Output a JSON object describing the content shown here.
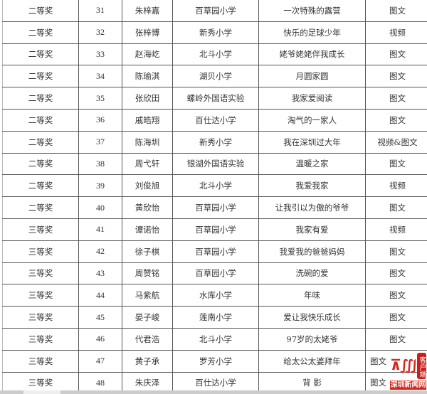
{
  "rows": [
    [
      "二等奖",
      "31",
      "朱梓嘉",
      "百草园小学",
      "一次特殊的露营",
      "图文"
    ],
    [
      "二等奖",
      "32",
      "张梓博",
      "新秀小学",
      "快乐的足球少年",
      "视频"
    ],
    [
      "二等奖",
      "33",
      "赵海屹",
      "北斗小学",
      "姥爷姥姥伴我成长",
      "图文"
    ],
    [
      "二等奖",
      "34",
      "陈瑜淇",
      "湖贝小学",
      "月圆家圆",
      "图文"
    ],
    [
      "二等奖",
      "35",
      "张欣田",
      "螺岭外国语实验",
      "我家爱阅读",
      "图文"
    ],
    [
      "二等奖",
      "36",
      "戚皓翔",
      "百仕达小学",
      "淘气的一家人",
      "图文"
    ],
    [
      "二等奖",
      "37",
      "陈海圳",
      "新秀小学",
      "我在深圳过大年",
      "视频&图文"
    ],
    [
      "二等奖",
      "38",
      "周弋轩",
      "银湖外国语实验",
      "温暖之家",
      "图文"
    ],
    [
      "二等奖",
      "39",
      "刘俊旭",
      "北斗小学",
      "我爱我家",
      "视频"
    ],
    [
      "二等奖",
      "40",
      "黄欣怡",
      "百草园小学",
      "让我引以为傲的爷爷",
      "图文"
    ],
    [
      "三等奖",
      "41",
      "谭诺怡",
      "百草园小学",
      "我家有爱",
      "视频"
    ],
    [
      "三等奖",
      "42",
      "徐子棋",
      "百草园小学",
      "我爱我的爸爸妈妈",
      "图文"
    ],
    [
      "三等奖",
      "43",
      "周赞铭",
      "百草园小学",
      "洗碗的爱",
      "图文"
    ],
    [
      "三等奖",
      "44",
      "马紫航",
      "水库小学",
      "年味",
      "图文"
    ],
    [
      "三等奖",
      "45",
      "晏子峻",
      "莲南小学",
      "爱让我快乐成长",
      "图文"
    ],
    [
      "三等奖",
      "46",
      "代君浩",
      "北斗小学",
      "97岁的太姥爷",
      "图文"
    ],
    [
      "三等奖",
      "47",
      "黄子承",
      "罗芳小学",
      "给太公太婆拜年",
      "图文"
    ],
    [
      "三等奖",
      "48",
      "朱庆泽",
      "百仕达小学",
      "背  影",
      "图文"
    ]
  ],
  "watermark": {
    "mark": "深圳",
    "badge": "客户端",
    "site": "深圳新闻网",
    "color": "#d3271c"
  }
}
